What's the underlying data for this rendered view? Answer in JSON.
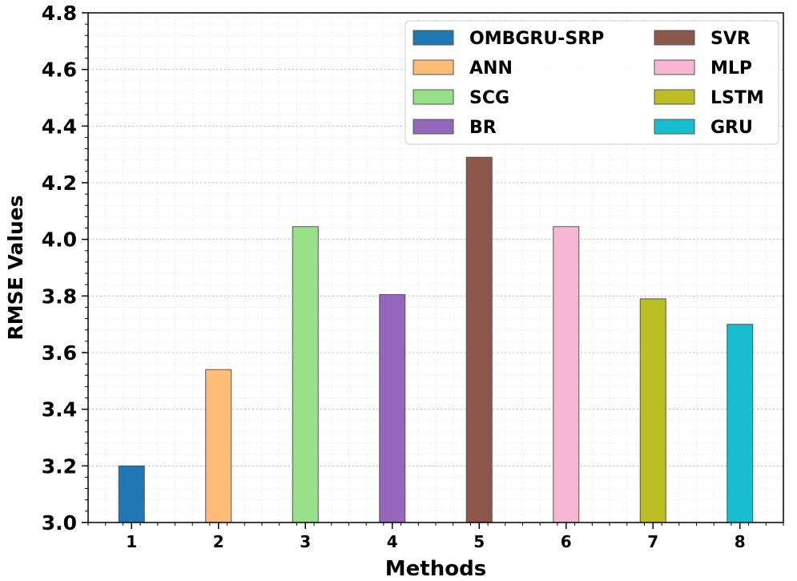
{
  "chart_data": {
    "type": "bar",
    "categories": [
      "1",
      "2",
      "3",
      "4",
      "5",
      "6",
      "7",
      "8"
    ],
    "series": [
      {
        "name": "OMBGRU-SRP",
        "category": "1",
        "value": 3.2,
        "color": "#1f77b4"
      },
      {
        "name": "ANN",
        "category": "2",
        "value": 3.54,
        "color": "#ffbb78"
      },
      {
        "name": "SCG",
        "category": "3",
        "value": 4.045,
        "color": "#98df8a"
      },
      {
        "name": "BR",
        "category": "4",
        "value": 3.805,
        "color": "#9467bd"
      },
      {
        "name": "SVR",
        "category": "5",
        "value": 4.29,
        "color": "#8c564b"
      },
      {
        "name": "MLP",
        "category": "6",
        "value": 4.045,
        "color": "#f7b6d2"
      },
      {
        "name": "LSTM",
        "category": "7",
        "value": 3.79,
        "color": "#bcbd22"
      },
      {
        "name": "GRU",
        "category": "8",
        "value": 3.7,
        "color": "#17becf"
      }
    ],
    "yticks": [
      "3.0",
      "3.2",
      "3.4",
      "3.6",
      "3.8",
      "4.0",
      "4.2",
      "4.4",
      "4.6",
      "4.8"
    ],
    "ylim": [
      3.0,
      4.8
    ],
    "xlabel": "Methods",
    "ylabel": "RMSE Values",
    "title": "",
    "grid": true,
    "legend_position": "top-right",
    "legend_columns": 2
  }
}
